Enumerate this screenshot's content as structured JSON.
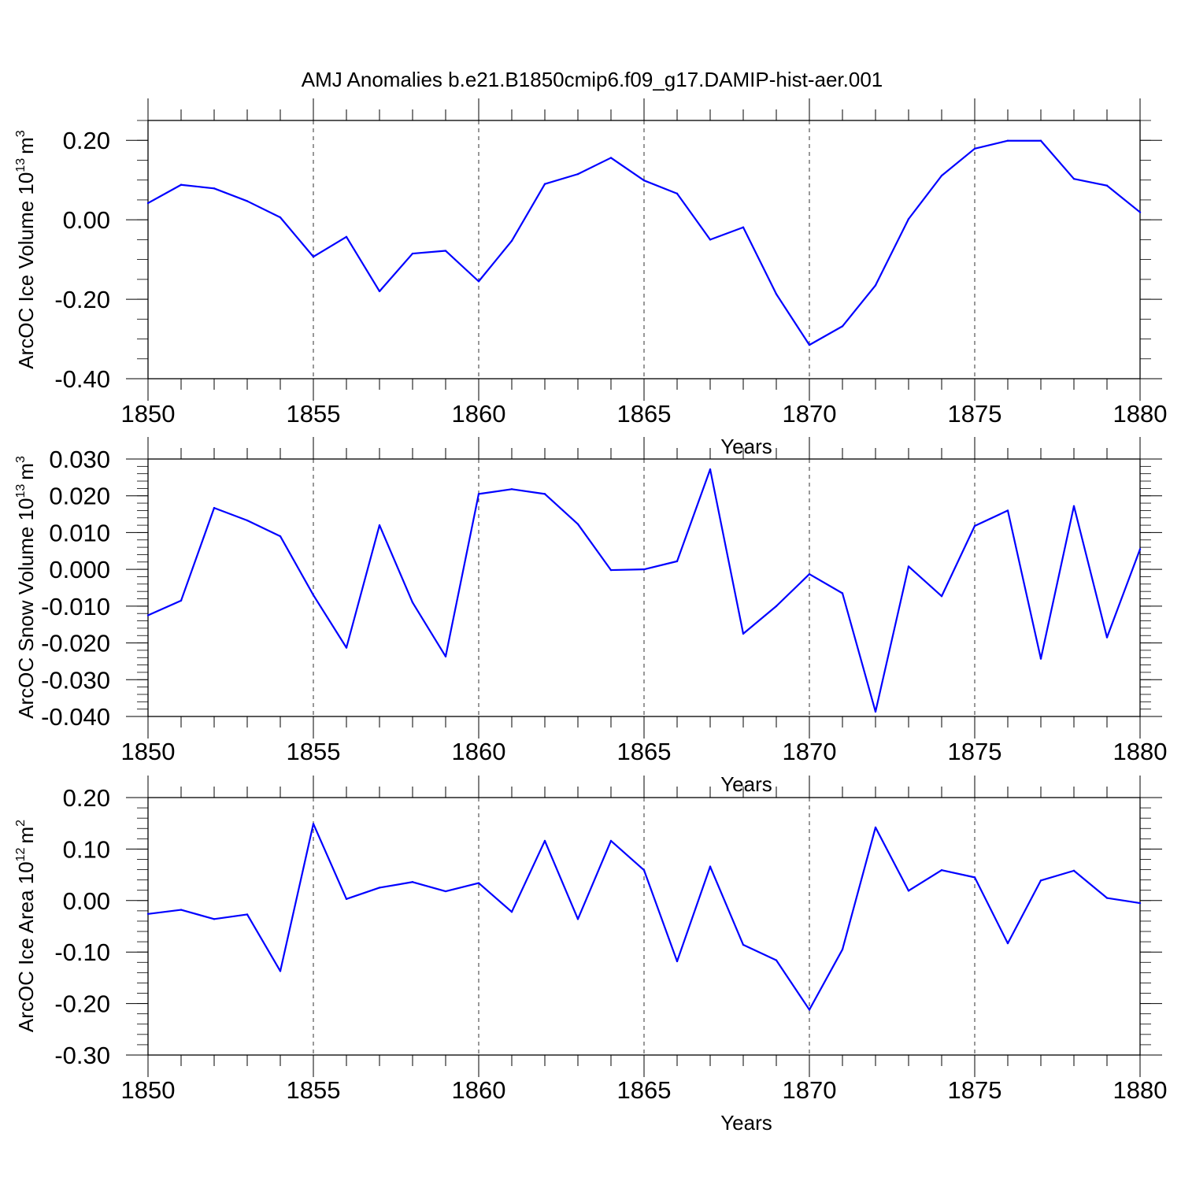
{
  "title": "AMJ Anomalies b.e21.B1850cmip6.f09_g17.DAMIP-hist-aer.001",
  "colors": {
    "series": "#0000ff",
    "axes": "#000000",
    "grid": "#000000"
  },
  "chart_data": [
    {
      "type": "line",
      "ylabel": "ArcOC Ice Volume 10",
      "ylabel_exp": "13",
      "ylabel_unit": "m",
      "ylabel_unit_exp": "3",
      "xlabel": "Years",
      "xlim": [
        1850,
        1880
      ],
      "ylim": [
        -0.4,
        0.25
      ],
      "yticks": [
        -0.4,
        -0.2,
        0.0,
        0.2
      ],
      "ytick_labels": [
        "-0.40",
        "-0.20",
        "0.00",
        "0.20"
      ],
      "y_minor_step": 0.05,
      "xticks": [
        1850,
        1855,
        1860,
        1865,
        1870,
        1875,
        1880
      ],
      "xtick_labels": [
        "1850",
        "1855",
        "1860",
        "1865",
        "1870",
        "1875",
        "1880"
      ],
      "x": [
        1850,
        1851,
        1852,
        1853,
        1854,
        1855,
        1856,
        1857,
        1858,
        1859,
        1860,
        1861,
        1862,
        1863,
        1864,
        1865,
        1866,
        1867,
        1868,
        1869,
        1870,
        1871,
        1872,
        1873,
        1874,
        1875,
        1876,
        1877,
        1878,
        1879,
        1880
      ],
      "values": [
        0.042,
        0.088,
        0.079,
        0.047,
        0.006,
        -0.093,
        -0.043,
        -0.18,
        -0.085,
        -0.078,
        -0.155,
        -0.053,
        0.09,
        0.115,
        0.156,
        0.099,
        0.066,
        -0.05,
        -0.019,
        -0.187,
        -0.315,
        -0.268,
        -0.165,
        0.002,
        0.111,
        0.179,
        0.199,
        0.199,
        0.103,
        0.086,
        0.019
      ]
    },
    {
      "type": "line",
      "ylabel": "ArcOC Snow Volume 10",
      "ylabel_exp": "13",
      "ylabel_unit": "m",
      "ylabel_unit_exp": "3",
      "xlabel": "Years",
      "xlim": [
        1850,
        1880
      ],
      "ylim": [
        -0.04,
        0.03
      ],
      "yticks": [
        -0.04,
        -0.03,
        -0.02,
        -0.01,
        0.0,
        0.01,
        0.02,
        0.03
      ],
      "ytick_labels": [
        "-0.040",
        "-0.030",
        "-0.020",
        "-0.010",
        "0.000",
        "0.010",
        "0.020",
        "0.030"
      ],
      "y_minor_step": 0.002,
      "xticks": [
        1850,
        1855,
        1860,
        1865,
        1870,
        1875,
        1880
      ],
      "xtick_labels": [
        "1850",
        "1855",
        "1860",
        "1865",
        "1870",
        "1875",
        "1880"
      ],
      "x": [
        1850,
        1851,
        1852,
        1853,
        1854,
        1855,
        1856,
        1857,
        1858,
        1859,
        1860,
        1861,
        1862,
        1863,
        1864,
        1865,
        1866,
        1867,
        1868,
        1869,
        1870,
        1871,
        1872,
        1873,
        1874,
        1875,
        1876,
        1877,
        1878,
        1879,
        1880
      ],
      "values": [
        -0.0125,
        -0.0085,
        0.0167,
        0.0133,
        0.009,
        -0.007,
        -0.0213,
        0.012,
        -0.009,
        -0.0237,
        0.0205,
        0.0218,
        0.0205,
        0.0123,
        -0.0002,
        0.0,
        0.0022,
        0.0272,
        -0.0175,
        -0.01,
        -0.0013,
        -0.0065,
        -0.0387,
        0.0008,
        -0.0073,
        0.0118,
        0.016,
        -0.0243,
        0.0172,
        -0.0185,
        0.0055
      ]
    },
    {
      "type": "line",
      "ylabel": "ArcOC Ice Area 10",
      "ylabel_exp": "12",
      "ylabel_unit": "m",
      "ylabel_unit_exp": "2",
      "xlabel": "Years",
      "xlim": [
        1850,
        1880
      ],
      "ylim": [
        -0.3,
        0.2
      ],
      "yticks": [
        -0.3,
        -0.2,
        -0.1,
        0.0,
        0.1,
        0.2
      ],
      "ytick_labels": [
        "-0.30",
        "-0.20",
        "-0.10",
        "0.00",
        "0.10",
        "0.20"
      ],
      "y_minor_step": 0.02,
      "xticks": [
        1850,
        1855,
        1860,
        1865,
        1870,
        1875,
        1880
      ],
      "xtick_labels": [
        "1850",
        "1855",
        "1860",
        "1865",
        "1870",
        "1875",
        "1880"
      ],
      "x": [
        1850,
        1851,
        1852,
        1853,
        1854,
        1855,
        1856,
        1857,
        1858,
        1859,
        1860,
        1861,
        1862,
        1863,
        1864,
        1865,
        1866,
        1867,
        1868,
        1869,
        1870,
        1871,
        1872,
        1873,
        1874,
        1875,
        1876,
        1877,
        1878,
        1879,
        1880
      ],
      "values": [
        -0.026,
        -0.018,
        -0.036,
        -0.027,
        -0.137,
        0.149,
        0.003,
        0.025,
        0.036,
        0.018,
        0.034,
        -0.022,
        0.116,
        -0.036,
        0.116,
        0.059,
        -0.118,
        0.066,
        -0.086,
        -0.116,
        -0.212,
        -0.095,
        0.142,
        0.019,
        0.059,
        0.045,
        -0.083,
        0.039,
        0.058,
        0.005,
        -0.005
      ]
    }
  ]
}
